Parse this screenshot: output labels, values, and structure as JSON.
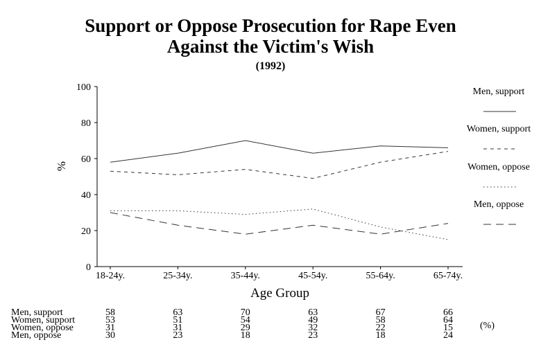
{
  "chart_data": {
    "type": "line",
    "title": "Support or Oppose Prosecution for Rape Even",
    "title_line2": "Against the Victim's Wish",
    "subtitle": "(1992)",
    "xlabel": "Age Group",
    "ylabel": "%",
    "ylim": [
      0,
      100
    ],
    "yticks": [
      0,
      20,
      40,
      60,
      80,
      100
    ],
    "categories": [
      "18-24y.",
      "25-34y.",
      "35-44y.",
      "45-54y.",
      "55-64y.",
      "65-74y."
    ],
    "legend_position": "right",
    "grid": false,
    "series": [
      {
        "name": "Men, support",
        "values": [
          58,
          63,
          70,
          63,
          67,
          66
        ],
        "style": "solid"
      },
      {
        "name": "Women, support",
        "values": [
          53,
          51,
          54,
          49,
          58,
          64
        ],
        "style": "short-dash"
      },
      {
        "name": "Women, oppose",
        "values": [
          31,
          31,
          29,
          32,
          22,
          15
        ],
        "style": "dotted"
      },
      {
        "name": "Men, oppose",
        "values": [
          30,
          23,
          18,
          23,
          18,
          24
        ],
        "style": "long-dash"
      }
    ],
    "table_unit": "(%)"
  }
}
